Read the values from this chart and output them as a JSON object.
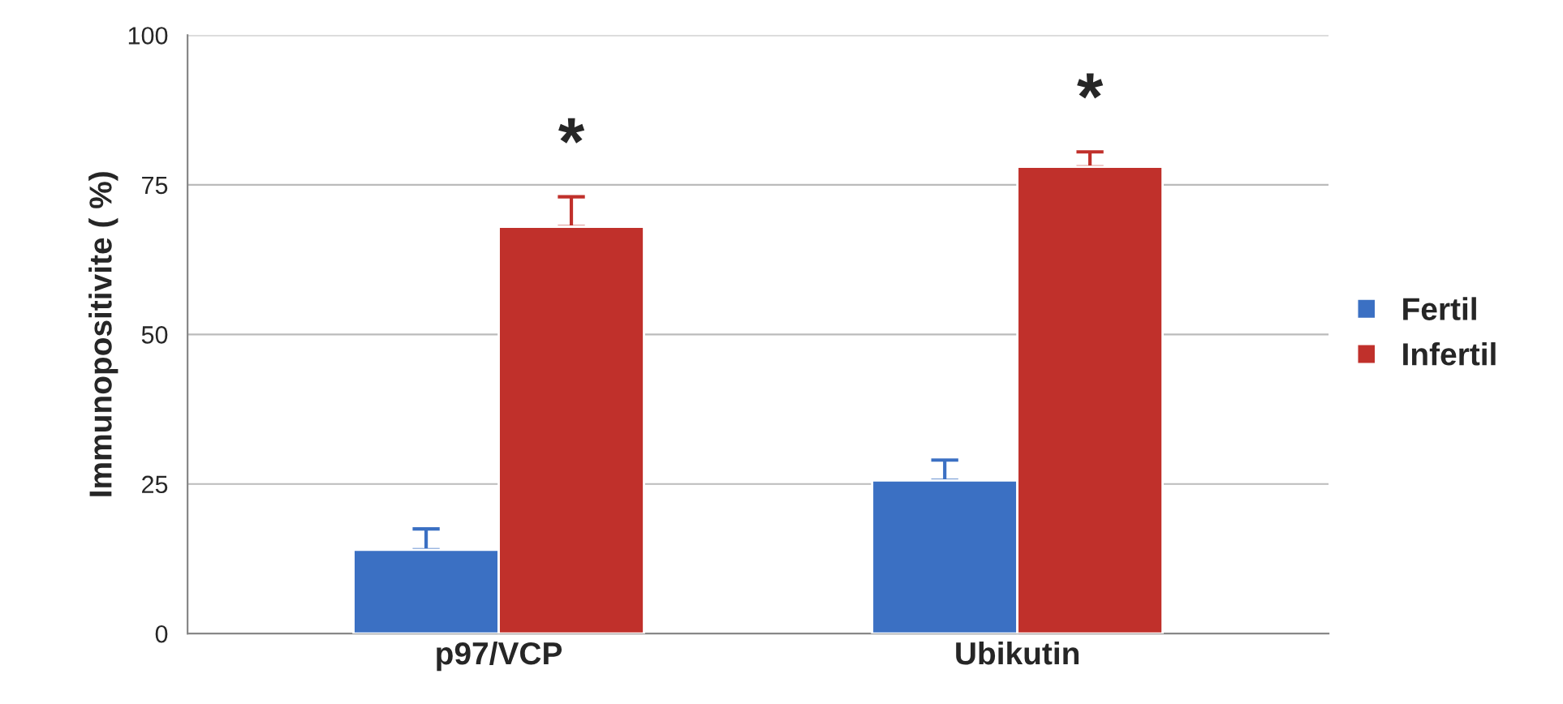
{
  "chart_data": {
    "type": "bar",
    "ylabel": "Immunopositivite ( %)",
    "categories": [
      "p97/VCP",
      "Ubikutin"
    ],
    "series": [
      {
        "name": "Fertil",
        "color": "#3b70c3",
        "values": [
          14,
          25.6
        ],
        "errors": [
          [
            14,
            17.5
          ],
          [
            25.6,
            29
          ]
        ]
      },
      {
        "name": "Infertil",
        "color": "#c0302b",
        "values": [
          68,
          78
        ],
        "errors": [
          [
            68,
            73
          ],
          [
            78,
            80.5
          ]
        ]
      }
    ],
    "annotations": [
      "*",
      "*"
    ],
    "ylim": [
      0,
      100
    ],
    "yticks": [
      0,
      25,
      50,
      75,
      100
    ],
    "grid": "y",
    "legend": "right"
  }
}
